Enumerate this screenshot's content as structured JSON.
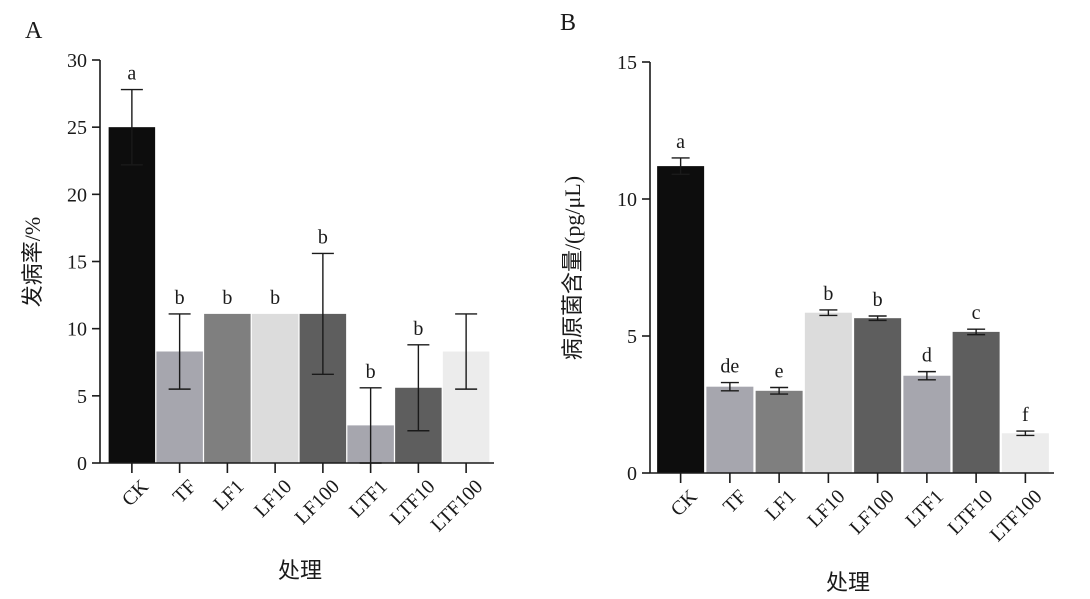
{
  "chart_data": [
    {
      "type": "bar",
      "panel": "A",
      "categories": [
        "CK",
        "TF",
        "LF1",
        "LF10",
        "LF100",
        "LTF1",
        "LTF10",
        "LTF100"
      ],
      "values": [
        25.0,
        8.3,
        11.1,
        11.1,
        11.1,
        2.8,
        5.6,
        8.3
      ],
      "errors": [
        2.8,
        2.8,
        0,
        0,
        4.5,
        2.8,
        3.2,
        2.8
      ],
      "significance": [
        "a",
        "b",
        "b",
        "b",
        "b",
        "b",
        "b",
        ""
      ],
      "bar_colors": [
        "#0d0d0d",
        "#a6a6ae",
        "#7f7f7f",
        "#dcdcdc",
        "#5e5e5e",
        "#a6a6ae",
        "#5e5e5e",
        "#ececec"
      ],
      "ylim": [
        0,
        30
      ],
      "yticks": [
        "0",
        "5",
        "10",
        "15",
        "20",
        "25",
        "30"
      ],
      "ylabel": "发病率/%",
      "xlabel": "处理",
      "grid": false
    },
    {
      "type": "bar",
      "panel": "B",
      "categories": [
        "CK",
        "TF",
        "LF1",
        "LF10",
        "LF100",
        "LTF1",
        "LTF10",
        "LTF100"
      ],
      "values": [
        11.2,
        3.15,
        3.0,
        5.85,
        5.65,
        3.55,
        5.15,
        1.45
      ],
      "errors": [
        0.3,
        0.15,
        0.12,
        0.1,
        0.08,
        0.15,
        0.1,
        0.08
      ],
      "significance": [
        "a",
        "de",
        "e",
        "b",
        "b",
        "d",
        "c",
        "f"
      ],
      "bar_colors": [
        "#0d0d0d",
        "#a6a6ae",
        "#7f7f7f",
        "#dcdcdc",
        "#5e5e5e",
        "#a6a6ae",
        "#5e5e5e",
        "#ececec"
      ],
      "ylim": [
        0,
        15
      ],
      "yticks": [
        "0",
        "5",
        "10",
        "15"
      ],
      "ylabel": "病原菌含量/(pg/μL)",
      "xlabel": "处理",
      "grid": false
    }
  ]
}
